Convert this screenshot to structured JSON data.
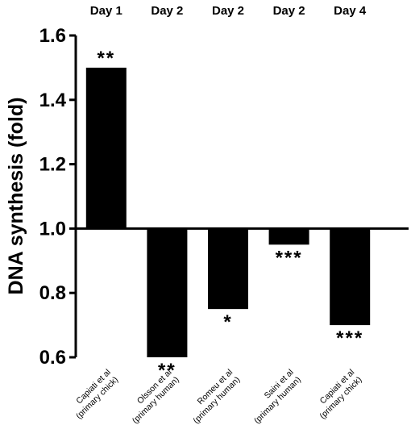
{
  "chart_data": {
    "type": "bar",
    "title": "",
    "xlabel": "",
    "ylabel": "DNA synthesis (fold)",
    "ylim": [
      0.6,
      1.6
    ],
    "baseline": 1.0,
    "yticks": [
      "0.6",
      "0.8",
      "1.0",
      "1.2",
      "1.4",
      "1.6"
    ],
    "categories": [
      {
        "line1": "Capiati et al",
        "line2": "(primary chick)"
      },
      {
        "line1": "Olsson et al",
        "line2": "(primary human)"
      },
      {
        "line1": "Romeu et al",
        "line2": "(primary human)"
      },
      {
        "line1": "Saini et al",
        "line2": "(primary human)"
      },
      {
        "line1": "Capiati et al",
        "line2": "(primary chick)"
      }
    ],
    "days": [
      "Day 1",
      "Day 2",
      "Day 2",
      "Day 2",
      "Day 4"
    ],
    "values": [
      1.5,
      0.6,
      0.75,
      0.95,
      0.7
    ],
    "significance": [
      "**",
      "**",
      "*",
      "***",
      "***"
    ],
    "bar_color": "#000000",
    "grid": false
  }
}
